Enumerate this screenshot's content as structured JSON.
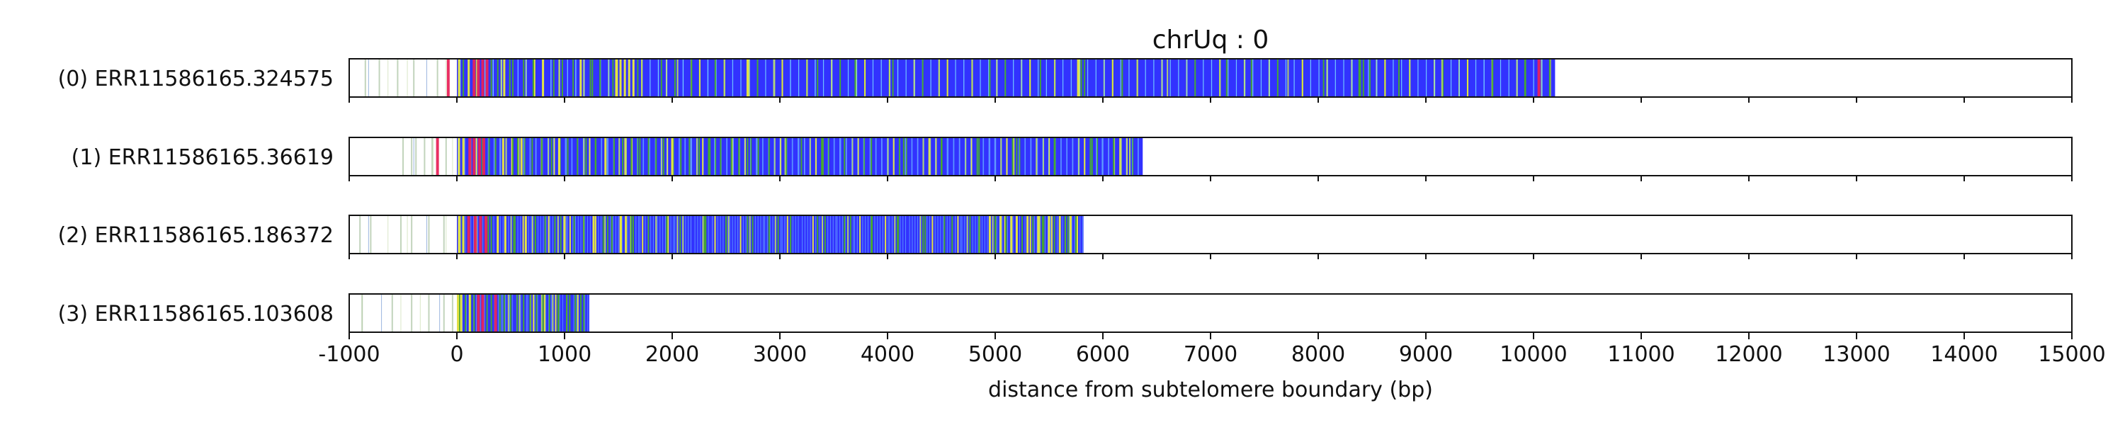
{
  "chart_data": {
    "type": "heatmap",
    "title": "chrUq : 0",
    "xlabel": "distance from subtelomere boundary (bp)",
    "ylabel": "",
    "xlim": [
      -1000,
      15000
    ],
    "xticks": [
      -1000,
      0,
      1000,
      2000,
      3000,
      4000,
      5000,
      6000,
      7000,
      8000,
      9000,
      10000,
      11000,
      12000,
      13000,
      14000,
      15000
    ],
    "grid": "x-dashed",
    "colors": {
      "base": "#3232ff",
      "green": "#46aa2a",
      "yellow": "#ecec3a",
      "pink": "#e8245a",
      "lightgreen": "#b8d86a",
      "faint": "#a9c3a0"
    },
    "series": [
      {
        "name": "(0) ERR11586165.324575",
        "start": -1000,
        "end": 10200,
        "core_start": 0,
        "features": [
          {
            "x": -850,
            "c": "faint"
          },
          {
            "x": -720,
            "c": "faint"
          },
          {
            "x": -550,
            "c": "faint"
          },
          {
            "x": -400,
            "c": "faint"
          },
          {
            "x": -180,
            "c": "faint"
          },
          {
            "x": -80,
            "c": "pink"
          },
          {
            "x": 20,
            "c": "yellow"
          },
          {
            "x": 60,
            "c": "green"
          },
          {
            "x": 110,
            "c": "yellow"
          },
          {
            "x": 160,
            "c": "pink"
          },
          {
            "x": 200,
            "c": "pink"
          },
          {
            "x": 240,
            "c": "pink"
          },
          {
            "x": 280,
            "c": "pink"
          },
          {
            "x": 320,
            "c": "green"
          },
          {
            "x": 380,
            "c": "green"
          },
          {
            "x": 440,
            "c": "yellow"
          },
          {
            "x": 520,
            "c": "green"
          },
          {
            "x": 620,
            "c": "green"
          },
          {
            "x": 710,
            "c": "green"
          },
          {
            "x": 800,
            "c": "yellow"
          },
          {
            "x": 900,
            "c": "green"
          },
          {
            "x": 980,
            "c": "green"
          },
          {
            "x": 1080,
            "c": "green"
          },
          {
            "x": 1150,
            "c": "yellow"
          },
          {
            "x": 1240,
            "c": "green"
          },
          {
            "x": 1330,
            "c": "green"
          },
          {
            "x": 1450,
            "c": "green"
          },
          {
            "x": 1480,
            "c": "yellow"
          },
          {
            "x": 1520,
            "c": "yellow"
          },
          {
            "x": 1560,
            "c": "yellow"
          },
          {
            "x": 1600,
            "c": "yellow"
          },
          {
            "x": 1640,
            "c": "yellow"
          },
          {
            "x": 1680,
            "c": "green"
          },
          {
            "x": 1900,
            "c": "green"
          },
          {
            "x": 2050,
            "c": "lightgreen"
          },
          {
            "x": 2180,
            "c": "green"
          },
          {
            "x": 2400,
            "c": "green"
          },
          {
            "x": 2700,
            "c": "yellow"
          },
          {
            "x": 2950,
            "c": "lightgreen"
          },
          {
            "x": 3350,
            "c": "green"
          },
          {
            "x": 3700,
            "c": "green"
          },
          {
            "x": 4050,
            "c": "green"
          },
          {
            "x": 4480,
            "c": "lightgreen"
          },
          {
            "x": 4950,
            "c": "green"
          },
          {
            "x": 5420,
            "c": "green"
          },
          {
            "x": 5770,
            "c": "yellow"
          },
          {
            "x": 5800,
            "c": "green"
          },
          {
            "x": 5830,
            "c": "green"
          },
          {
            "x": 6180,
            "c": "green"
          },
          {
            "x": 6600,
            "c": "lightgreen"
          },
          {
            "x": 7150,
            "c": "green"
          },
          {
            "x": 7380,
            "c": "green"
          },
          {
            "x": 7720,
            "c": "lightgreen"
          },
          {
            "x": 8050,
            "c": "green"
          },
          {
            "x": 8380,
            "c": "green"
          },
          {
            "x": 8420,
            "c": "green"
          },
          {
            "x": 8480,
            "c": "green"
          },
          {
            "x": 8750,
            "c": "green"
          },
          {
            "x": 9150,
            "c": "lightgreen"
          },
          {
            "x": 9620,
            "c": "green"
          },
          {
            "x": 9920,
            "c": "green"
          },
          {
            "x": 10050,
            "c": "pink"
          },
          {
            "x": 10150,
            "c": "green"
          }
        ]
      },
      {
        "name": "(1) ERR11586165.36619",
        "start": -520,
        "end": 6370,
        "core_start": 0,
        "features": [
          {
            "x": -500,
            "c": "faint"
          },
          {
            "x": -420,
            "c": "faint"
          },
          {
            "x": -380,
            "c": "faint"
          },
          {
            "x": -300,
            "c": "faint"
          },
          {
            "x": -230,
            "c": "faint"
          },
          {
            "x": -180,
            "c": "pink"
          },
          {
            "x": -100,
            "c": "faint"
          },
          {
            "x": 20,
            "c": "yellow"
          },
          {
            "x": 60,
            "c": "yellow"
          },
          {
            "x": 120,
            "c": "pink"
          },
          {
            "x": 160,
            "c": "pink"
          },
          {
            "x": 210,
            "c": "pink"
          },
          {
            "x": 250,
            "c": "pink"
          },
          {
            "x": 300,
            "c": "green"
          },
          {
            "x": 360,
            "c": "green"
          },
          {
            "x": 430,
            "c": "yellow"
          },
          {
            "x": 520,
            "c": "green"
          },
          {
            "x": 600,
            "c": "yellow"
          },
          {
            "x": 700,
            "c": "green"
          },
          {
            "x": 790,
            "c": "green"
          },
          {
            "x": 880,
            "c": "green"
          },
          {
            "x": 950,
            "c": "yellow"
          },
          {
            "x": 1030,
            "c": "green"
          },
          {
            "x": 1120,
            "c": "green"
          },
          {
            "x": 1200,
            "c": "green"
          },
          {
            "x": 1290,
            "c": "green"
          },
          {
            "x": 1380,
            "c": "yellow"
          },
          {
            "x": 1460,
            "c": "green"
          },
          {
            "x": 1540,
            "c": "green"
          },
          {
            "x": 1620,
            "c": "green"
          },
          {
            "x": 1700,
            "c": "green"
          },
          {
            "x": 1780,
            "c": "green"
          },
          {
            "x": 1850,
            "c": "green"
          },
          {
            "x": 1920,
            "c": "green"
          },
          {
            "x": 2000,
            "c": "yellow"
          },
          {
            "x": 2080,
            "c": "green"
          },
          {
            "x": 2160,
            "c": "green"
          },
          {
            "x": 2250,
            "c": "green"
          },
          {
            "x": 2350,
            "c": "green"
          },
          {
            "x": 2450,
            "c": "green"
          },
          {
            "x": 2550,
            "c": "green"
          },
          {
            "x": 2620,
            "c": "green"
          },
          {
            "x": 2700,
            "c": "green"
          },
          {
            "x": 2800,
            "c": "green"
          },
          {
            "x": 2900,
            "c": "green"
          },
          {
            "x": 3050,
            "c": "lightgreen"
          },
          {
            "x": 3200,
            "c": "green"
          },
          {
            "x": 3400,
            "c": "green"
          },
          {
            "x": 3600,
            "c": "green"
          },
          {
            "x": 3850,
            "c": "green"
          },
          {
            "x": 4150,
            "c": "green"
          },
          {
            "x": 4500,
            "c": "green"
          },
          {
            "x": 4850,
            "c": "green"
          },
          {
            "x": 5200,
            "c": "green"
          },
          {
            "x": 5550,
            "c": "green"
          },
          {
            "x": 5900,
            "c": "green"
          },
          {
            "x": 6100,
            "c": "green"
          },
          {
            "x": 6250,
            "c": "lightgreen"
          }
        ]
      },
      {
        "name": "(2) ERR11586165.186372",
        "start": -1000,
        "end": 5820,
        "core_start": 0,
        "features": [
          {
            "x": -900,
            "c": "faint"
          },
          {
            "x": -800,
            "c": "faint"
          },
          {
            "x": -520,
            "c": "faint"
          },
          {
            "x": -420,
            "c": "faint"
          },
          {
            "x": -260,
            "c": "faint"
          },
          {
            "x": -120,
            "c": "faint"
          },
          {
            "x": 20,
            "c": "yellow"
          },
          {
            "x": 60,
            "c": "yellow"
          },
          {
            "x": 110,
            "c": "pink"
          },
          {
            "x": 170,
            "c": "pink"
          },
          {
            "x": 220,
            "c": "pink"
          },
          {
            "x": 270,
            "c": "pink"
          },
          {
            "x": 320,
            "c": "green"
          },
          {
            "x": 380,
            "c": "yellow"
          },
          {
            "x": 450,
            "c": "yellow"
          },
          {
            "x": 540,
            "c": "green"
          },
          {
            "x": 640,
            "c": "yellow"
          },
          {
            "x": 730,
            "c": "green"
          },
          {
            "x": 820,
            "c": "green"
          },
          {
            "x": 910,
            "c": "green"
          },
          {
            "x": 1000,
            "c": "yellow"
          },
          {
            "x": 1090,
            "c": "green"
          },
          {
            "x": 1180,
            "c": "green"
          },
          {
            "x": 1270,
            "c": "yellow"
          },
          {
            "x": 1360,
            "c": "green"
          },
          {
            "x": 1440,
            "c": "green"
          },
          {
            "x": 1520,
            "c": "yellow"
          },
          {
            "x": 1570,
            "c": "yellow"
          },
          {
            "x": 1620,
            "c": "green"
          },
          {
            "x": 1780,
            "c": "green"
          },
          {
            "x": 1950,
            "c": "green"
          },
          {
            "x": 2100,
            "c": "lightgreen"
          },
          {
            "x": 2300,
            "c": "green"
          },
          {
            "x": 2500,
            "c": "green"
          },
          {
            "x": 2700,
            "c": "green"
          },
          {
            "x": 2900,
            "c": "green"
          },
          {
            "x": 3100,
            "c": "green"
          },
          {
            "x": 3350,
            "c": "green"
          },
          {
            "x": 3600,
            "c": "green"
          },
          {
            "x": 3850,
            "c": "green"
          },
          {
            "x": 4100,
            "c": "green"
          },
          {
            "x": 4350,
            "c": "green"
          },
          {
            "x": 4600,
            "c": "green"
          },
          {
            "x": 4850,
            "c": "green"
          },
          {
            "x": 4950,
            "c": "yellow"
          },
          {
            "x": 5000,
            "c": "green"
          },
          {
            "x": 5050,
            "c": "yellow"
          },
          {
            "x": 5100,
            "c": "green"
          },
          {
            "x": 5150,
            "c": "yellow"
          },
          {
            "x": 5200,
            "c": "yellow"
          },
          {
            "x": 5250,
            "c": "green"
          },
          {
            "x": 5300,
            "c": "yellow"
          },
          {
            "x": 5350,
            "c": "green"
          },
          {
            "x": 5400,
            "c": "yellow"
          },
          {
            "x": 5450,
            "c": "green"
          },
          {
            "x": 5500,
            "c": "yellow"
          },
          {
            "x": 5550,
            "c": "green"
          },
          {
            "x": 5600,
            "c": "yellow"
          },
          {
            "x": 5650,
            "c": "green"
          },
          {
            "x": 5700,
            "c": "yellow"
          },
          {
            "x": 5750,
            "c": "green"
          }
        ]
      },
      {
        "name": "(3) ERR11586165.103608",
        "start": -1000,
        "end": 1230,
        "core_start": 0,
        "features": [
          {
            "x": -880,
            "c": "faint"
          },
          {
            "x": -600,
            "c": "faint"
          },
          {
            "x": -420,
            "c": "faint"
          },
          {
            "x": -260,
            "c": "faint"
          },
          {
            "x": -120,
            "c": "faint"
          },
          {
            "x": -40,
            "c": "faint"
          },
          {
            "x": 10,
            "c": "yellow"
          },
          {
            "x": 40,
            "c": "yellow"
          },
          {
            "x": 80,
            "c": "green"
          },
          {
            "x": 120,
            "c": "yellow"
          },
          {
            "x": 160,
            "c": "green"
          },
          {
            "x": 200,
            "c": "pink"
          },
          {
            "x": 240,
            "c": "pink"
          },
          {
            "x": 280,
            "c": "green"
          },
          {
            "x": 320,
            "c": "green"
          },
          {
            "x": 360,
            "c": "pink"
          },
          {
            "x": 400,
            "c": "green"
          },
          {
            "x": 440,
            "c": "green"
          },
          {
            "x": 500,
            "c": "green"
          },
          {
            "x": 560,
            "c": "green"
          },
          {
            "x": 620,
            "c": "green"
          },
          {
            "x": 680,
            "c": "green"
          },
          {
            "x": 740,
            "c": "green"
          },
          {
            "x": 800,
            "c": "green"
          },
          {
            "x": 860,
            "c": "green"
          },
          {
            "x": 940,
            "c": "green"
          },
          {
            "x": 1020,
            "c": "green"
          },
          {
            "x": 1100,
            "c": "green"
          },
          {
            "x": 1180,
            "c": "green"
          }
        ]
      }
    ]
  }
}
